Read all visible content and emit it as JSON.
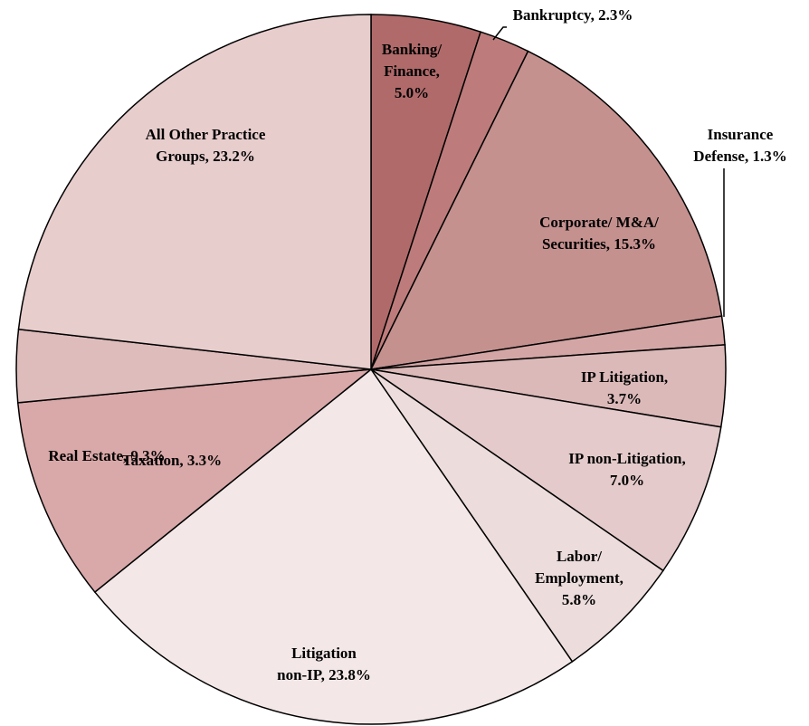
{
  "chart_data": {
    "type": "pie",
    "categories": [
      "Banking/ Finance",
      "Bankruptcy",
      "Corporate/ M&A/ Securities",
      "Insurance Defense",
      "IP Litigation",
      "IP non-Litigation",
      "Labor/ Employment",
      "Litigation non-IP",
      "Real Estate",
      "Taxation",
      "All Other Practice Groups"
    ],
    "values": [
      5.0,
      2.3,
      15.3,
      1.3,
      3.7,
      7.0,
      5.8,
      23.8,
      9.3,
      3.3,
      23.2
    ],
    "labels": [
      [
        "Banking/",
        "Finance,",
        "5.0%"
      ],
      [
        "Bankruptcy, 2.3%"
      ],
      [
        "Corporate/ M&A/",
        "Securities, 15.3%"
      ],
      [
        "Insurance",
        "Defense, 1.3%"
      ],
      [
        "IP Litigation,",
        "3.7%"
      ],
      [
        "IP non-Litigation,",
        "7.0%"
      ],
      [
        "Labor/",
        "Employment,",
        "5.8%"
      ],
      [
        "Litigation",
        "non-IP, 23.8%"
      ],
      [
        "Real Estate, 9.3%"
      ],
      [
        "Taxation, 3.3%"
      ],
      [
        "All Other Practice",
        "Groups, 23.2%"
      ]
    ],
    "colors": [
      "#b06a6a",
      "#bd7c7b",
      "#c4918f",
      "#d3a6a5",
      "#dcb9b9",
      "#e4caca",
      "#ecdcdc",
      "#f3e7e7",
      "#d9a8a8",
      "#dfbcbc",
      "#e8cdcd"
    ]
  }
}
